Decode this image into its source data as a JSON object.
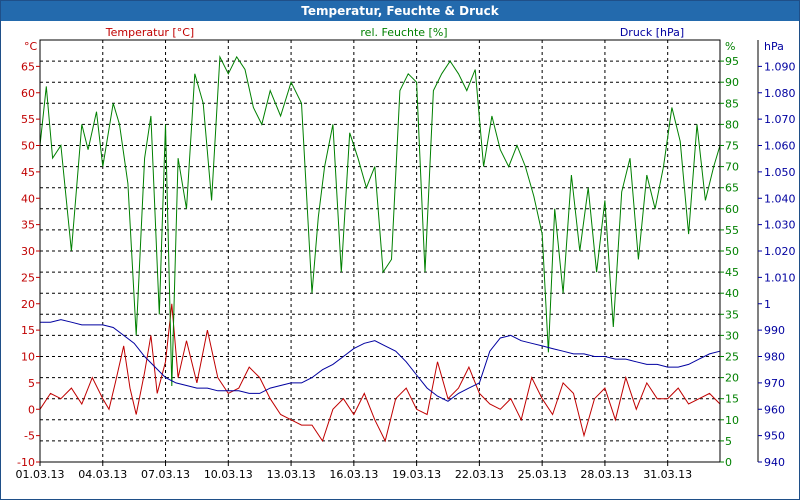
{
  "window": {
    "title": "Temperatur, Feuchte & Druck"
  },
  "colors": {
    "temp": "#c00000",
    "hum": "#008000",
    "press": "#0000a0",
    "grid": "#000000",
    "titlebar": "#236aad"
  },
  "chart_data": {
    "type": "line",
    "title": "Temperatur, Feuchte & Druck",
    "x_labels": [
      "01.03.13",
      "04.03.13",
      "07.03.13",
      "10.03.13",
      "13.03.13",
      "16.03.13",
      "19.03.13",
      "22.03.13",
      "25.03.13",
      "28.03.13",
      "31.03.13"
    ],
    "x_range_days": [
      0,
      32.5
    ],
    "axes": {
      "temp": {
        "label": "Temperatur [°C]",
        "unit": "°C",
        "ylim": [
          -10,
          70
        ],
        "ticks": [
          -10,
          -5,
          0,
          5,
          10,
          15,
          20,
          25,
          30,
          35,
          40,
          45,
          50,
          55,
          60,
          65
        ]
      },
      "hum": {
        "label": "rel. Feuchte [%]",
        "unit": "%",
        "ylim": [
          0,
          100
        ],
        "ticks": [
          0,
          5,
          10,
          15,
          20,
          25,
          30,
          35,
          40,
          45,
          50,
          55,
          60,
          65,
          70,
          75,
          80,
          85,
          90,
          95
        ]
      },
      "press": {
        "label": "Druck [hPa]",
        "unit": "hPa",
        "ylim": [
          940,
          1100
        ],
        "ticks": [
          940,
          950,
          960,
          970,
          980,
          990,
          1000,
          1010,
          1020,
          1030,
          1040,
          1050,
          1060,
          1070,
          1080,
          1090
        ]
      }
    },
    "series": [
      {
        "name": "Temperatur",
        "axis": "temp",
        "x": [
          0,
          0.5,
          1,
          1.5,
          2,
          2.5,
          3,
          3.3,
          3.6,
          4,
          4.3,
          4.6,
          5,
          5.3,
          5.6,
          6,
          6.3,
          6.6,
          7,
          7.5,
          8,
          8.5,
          9,
          9.5,
          10,
          10.5,
          11,
          11.5,
          12,
          12.5,
          13,
          13.5,
          14,
          14.5,
          15,
          15.5,
          16,
          16.5,
          17,
          17.5,
          18,
          18.5,
          19,
          19.5,
          20,
          20.5,
          21,
          21.5,
          22,
          22.5,
          23,
          23.5,
          24,
          24.5,
          25,
          25.5,
          26,
          26.5,
          27,
          27.5,
          28,
          28.5,
          29,
          29.5,
          30,
          30.5,
          31,
          31.5,
          32,
          32.5
        ],
        "values": [
          0,
          3,
          2,
          4,
          1,
          6,
          2,
          0,
          5,
          12,
          4,
          -1,
          7,
          14,
          3,
          9,
          20,
          6,
          13,
          5,
          15,
          6,
          3,
          4,
          8,
          6,
          2,
          -1,
          -2,
          -3,
          -3,
          -6,
          0,
          2,
          -1,
          3,
          -2,
          -6,
          2,
          4,
          0,
          -1,
          9,
          2,
          4,
          8,
          3,
          1,
          0,
          2,
          -2,
          6,
          2,
          -1,
          5,
          3,
          -5,
          2,
          4,
          -2,
          6,
          0,
          5,
          2,
          2,
          4,
          1,
          2,
          3,
          1
        ]
      },
      {
        "name": "rel. Feuchte",
        "axis": "hum",
        "x": [
          0,
          0.3,
          0.6,
          1,
          1.5,
          2,
          2.3,
          2.7,
          3,
          3.5,
          3.8,
          4.2,
          4.6,
          5,
          5.3,
          5.7,
          6,
          6.3,
          6.6,
          7,
          7.4,
          7.8,
          8.2,
          8.6,
          9,
          9.4,
          9.8,
          10.2,
          10.6,
          11,
          11.5,
          12,
          12.5,
          13,
          13.3,
          13.6,
          14,
          14.4,
          14.8,
          15.2,
          15.6,
          16,
          16.4,
          16.8,
          17.2,
          17.6,
          18,
          18.4,
          18.8,
          19.2,
          19.6,
          20,
          20.4,
          20.8,
          21.2,
          21.6,
          22,
          22.4,
          22.8,
          23.2,
          23.6,
          24,
          24.3,
          24.6,
          25,
          25.4,
          25.8,
          26.2,
          26.6,
          27,
          27.4,
          27.8,
          28.2,
          28.6,
          29,
          29.4,
          29.8,
          30.2,
          30.6,
          31,
          31.4,
          31.8,
          32.2,
          32.5
        ],
        "values": [
          75,
          89,
          72,
          75,
          50,
          80,
          74,
          83,
          70,
          85,
          80,
          66,
          30,
          72,
          82,
          35,
          80,
          18,
          72,
          60,
          92,
          85,
          62,
          96,
          92,
          96,
          93,
          84,
          80,
          88,
          82,
          90,
          85,
          40,
          58,
          70,
          80,
          45,
          78,
          72,
          65,
          70,
          45,
          48,
          88,
          92,
          90,
          45,
          88,
          92,
          95,
          92,
          88,
          93,
          70,
          82,
          74,
          70,
          75,
          70,
          63,
          54,
          26,
          60,
          40,
          68,
          50,
          65,
          45,
          62,
          32,
          64,
          72,
          48,
          68,
          60,
          70,
          84,
          76,
          54,
          80,
          62,
          70,
          75
        ]
      },
      {
        "name": "Druck",
        "axis": "press",
        "x": [
          0,
          0.5,
          1,
          1.5,
          2,
          2.5,
          3,
          3.5,
          4,
          4.5,
          5,
          5.5,
          6,
          6.5,
          7,
          7.5,
          8,
          8.5,
          9,
          9.5,
          10,
          10.5,
          11,
          11.5,
          12,
          12.5,
          13,
          13.5,
          14,
          14.5,
          15,
          15.5,
          16,
          16.5,
          17,
          17.5,
          18,
          18.5,
          19,
          19.5,
          20,
          20.5,
          21,
          21.5,
          22,
          22.5,
          23,
          23.5,
          24,
          24.5,
          25,
          25.5,
          26,
          26.5,
          27,
          27.5,
          28,
          28.5,
          29,
          29.5,
          30,
          30.5,
          31,
          31.5,
          32,
          32.5
        ],
        "values": [
          993,
          993,
          994,
          993,
          992,
          992,
          992,
          991,
          988,
          985,
          980,
          976,
          972,
          970,
          969,
          968,
          968,
          967,
          967,
          967,
          966,
          966,
          968,
          969,
          970,
          970,
          972,
          975,
          977,
          980,
          983,
          985,
          986,
          984,
          982,
          978,
          973,
          968,
          965,
          963,
          966,
          968,
          970,
          982,
          987,
          988,
          986,
          985,
          984,
          983,
          982,
          981,
          981,
          980,
          980,
          979,
          979,
          978,
          977,
          977,
          976,
          976,
          977,
          979,
          981,
          982
        ]
      }
    ]
  }
}
